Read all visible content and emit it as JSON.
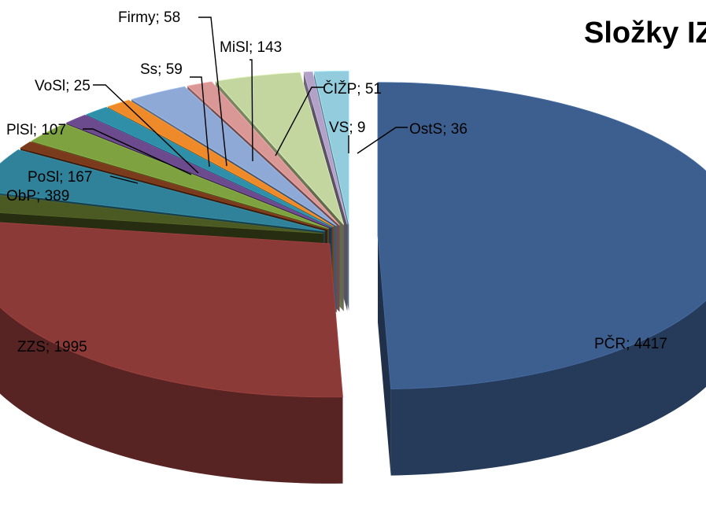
{
  "chart_data": {
    "type": "pie",
    "title": "Složky IZ",
    "slices": [
      {
        "label": "PČR",
        "value": 4417,
        "display": "PČR; 4417",
        "color": "#3d5f8f"
      },
      {
        "label": "ZZS",
        "value": 1995,
        "display": "ZZS; 1995",
        "color": "#8c3a38"
      },
      {
        "label": "",
        "value": 0,
        "display": "",
        "color": "#4b5a22"
      },
      {
        "label": "ObP",
        "value": 389,
        "display": "ObP; 389",
        "color": "#2f8299"
      },
      {
        "label": "PoSl",
        "value": 167,
        "display": "PoSl; 167",
        "color": "#7a3a1c"
      },
      {
        "label": "PlSl",
        "value": 107,
        "display": "PlSl; 107",
        "color": "#7da23f"
      },
      {
        "label": "VoSl",
        "value": 25,
        "display": "VoSl; 25",
        "color": "#6c4a8e"
      },
      {
        "label": "Ss",
        "value": 59,
        "display": "Ss; 59",
        "color": "#2f8fa8"
      },
      {
        "label": "Firmy",
        "value": 58,
        "display": "Firmy; 58",
        "color": "#ee8a2a"
      },
      {
        "label": "MiSl",
        "value": 143,
        "display": "MiSl; 143",
        "color": "#8ea9d6"
      },
      {
        "label": "ČIŽP",
        "value": 51,
        "display": "ČIŽP; 51",
        "color": "#d99896"
      },
      {
        "label": "",
        "value": 0,
        "display": "",
        "color": "#c4d6a0"
      },
      {
        "label": "VS",
        "value": 9,
        "display": "VS; 9",
        "color": "#b3a2c7"
      },
      {
        "label": "OstS",
        "value": 36,
        "display": "OstS; 36",
        "color": "#93cddd"
      }
    ],
    "legend": "none",
    "exploded": true,
    "three_d": true
  }
}
